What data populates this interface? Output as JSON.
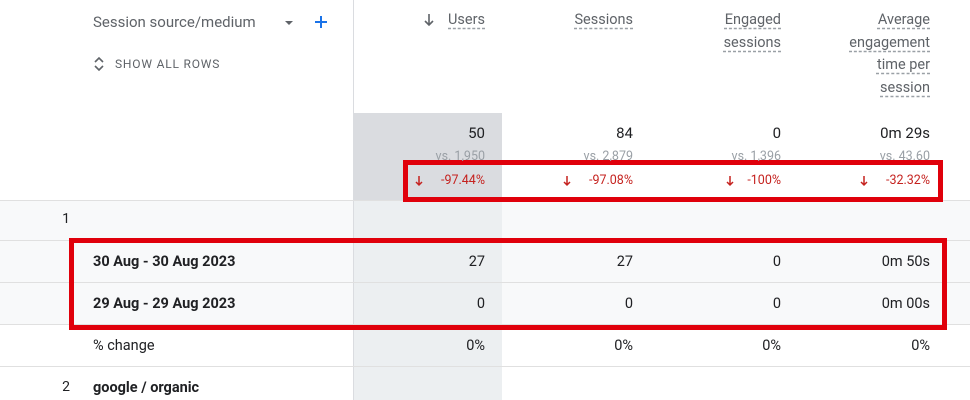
{
  "header": {
    "dimension": "Session source/medium",
    "show_all_rows": "SHOW ALL ROWS",
    "columns": [
      "Users",
      "Sessions",
      "Engaged sessions",
      "Average engagement time per session"
    ]
  },
  "totals": {
    "values": [
      "50",
      "84",
      "0",
      "0m 29s"
    ],
    "comparisons": [
      "vs. 1,950",
      "vs. 2,879",
      "vs. 1,396",
      "vs. 43.60"
    ],
    "changes": [
      "-97.44%",
      "-97.08%",
      "-100%",
      "-32.32%"
    ]
  },
  "rows": [
    {
      "index": "1",
      "sub_rows": [
        {
          "label": "30 Aug - 30 Aug 2023",
          "cells": [
            "27",
            "27",
            "0",
            "0m 50s"
          ]
        },
        {
          "label": "29 Aug - 29 Aug 2023",
          "cells": [
            "0",
            "0",
            "0",
            "0m 00s"
          ]
        },
        {
          "label": "% change",
          "cells": [
            "0%",
            "0%",
            "0%",
            "0%"
          ]
        }
      ]
    },
    {
      "index": "2",
      "label": "google / organic"
    }
  ]
}
